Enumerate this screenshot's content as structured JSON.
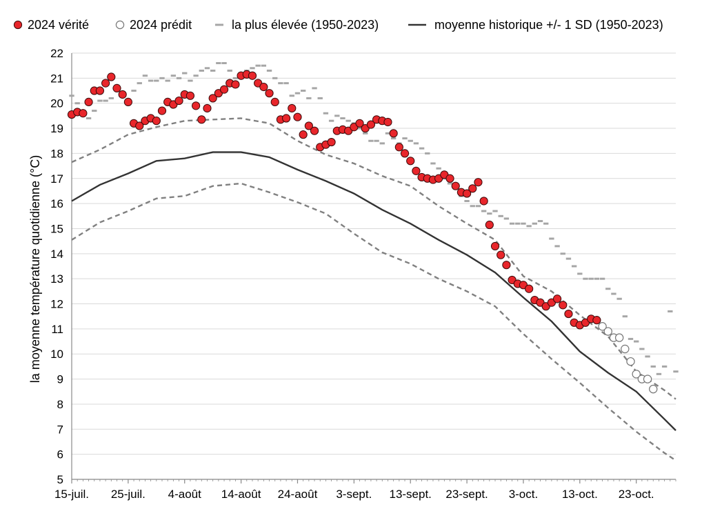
{
  "chart_data": {
    "type": "line",
    "xlabel": "",
    "ylabel": "la moyenne température quotidienne (°C)",
    "ylim": [
      5,
      22
    ],
    "yticks": [
      5,
      6,
      7,
      8,
      9,
      10,
      11,
      12,
      13,
      14,
      15,
      16,
      17,
      18,
      19,
      20,
      21,
      22
    ],
    "x_start_date": "15-juil.",
    "xlim": [
      0,
      107
    ],
    "xticks": [
      {
        "day": 0,
        "label": "15-juil."
      },
      {
        "day": 10,
        "label": "25-juil."
      },
      {
        "day": 20,
        "label": "4-août"
      },
      {
        "day": 30,
        "label": "14-août"
      },
      {
        "day": 40,
        "label": "24-août"
      },
      {
        "day": 50,
        "label": "3-sept."
      },
      {
        "day": 60,
        "label": "13-sept."
      },
      {
        "day": 70,
        "label": "23-sept."
      },
      {
        "day": 80,
        "label": "3-oct."
      },
      {
        "day": 90,
        "label": "13-oct."
      },
      {
        "day": 100,
        "label": "23-oct."
      }
    ],
    "grid": true,
    "legend_position": "top",
    "legend": [
      {
        "key": "observed",
        "label": "2024 vérité"
      },
      {
        "key": "predicted",
        "label": "2024 prédit"
      },
      {
        "key": "highest",
        "label": "la plus élevée (1950-2023)"
      },
      {
        "key": "mean",
        "label": "moyenne historique +/- 1 SD (1950-2023)"
      }
    ],
    "colors": {
      "observed_fill": "#e8262b",
      "observed_stroke": "#3a0a0a",
      "predicted_stroke": "#777777",
      "highest": "#a6a6a6",
      "sd": "#808080",
      "mean": "#333333",
      "grid": "#d9d9d9",
      "axis": "#888888"
    },
    "series": [
      {
        "name": "2024 vérité",
        "key": "observed",
        "x": [
          0,
          1,
          2,
          3,
          4,
          5,
          6,
          7,
          8,
          9,
          10,
          11,
          12,
          13,
          14,
          15,
          16,
          17,
          18,
          19,
          20,
          21,
          22,
          23,
          24,
          25,
          26,
          27,
          28,
          29,
          30,
          31,
          32,
          33,
          34,
          35,
          36,
          37,
          38,
          39,
          40,
          41,
          42,
          43,
          44,
          45,
          46,
          47,
          48,
          49,
          50,
          51,
          52,
          53,
          54,
          55,
          56,
          57,
          58,
          59,
          60,
          61,
          62,
          63,
          64,
          65,
          66,
          67,
          68,
          69,
          70,
          71,
          72,
          73,
          74,
          75,
          76,
          77,
          78,
          79,
          80,
          81,
          82,
          83,
          84,
          85,
          86,
          87,
          88,
          89,
          90,
          91,
          92,
          93
        ],
        "y": [
          19.55,
          19.65,
          19.6,
          20.05,
          20.5,
          20.5,
          20.8,
          21.05,
          20.6,
          20.35,
          20.05,
          19.2,
          19.1,
          19.3,
          19.4,
          19.3,
          19.7,
          20.05,
          19.95,
          20.1,
          20.35,
          20.3,
          19.9,
          19.35,
          19.8,
          20.2,
          20.4,
          20.55,
          20.8,
          20.75,
          21.1,
          21.15,
          21.1,
          20.8,
          20.65,
          20.4,
          20.05,
          19.35,
          19.4,
          19.8,
          19.45,
          18.75,
          19.1,
          18.9,
          18.25,
          18.35,
          18.45,
          18.9,
          18.95,
          18.9,
          19.05,
          19.2,
          19.0,
          19.15,
          19.35,
          19.3,
          19.25,
          18.8,
          18.25,
          18.0,
          17.7,
          17.3,
          17.05,
          17.0,
          16.95,
          17.0,
          17.15,
          17.0,
          16.7,
          16.45,
          16.4,
          16.6,
          16.85,
          16.1,
          15.15,
          14.3,
          13.95,
          13.55,
          12.95,
          12.8,
          12.75,
          12.6,
          12.15,
          12.05,
          11.9,
          12.05,
          12.2,
          11.95,
          11.6,
          11.25,
          11.15,
          11.25,
          11.4,
          11.35
        ]
      },
      {
        "name": "2024 prédit",
        "key": "predicted",
        "x": [
          94,
          95,
          96,
          97,
          98,
          99,
          100,
          101,
          102,
          103
        ],
        "y": [
          11.1,
          10.9,
          10.65,
          10.65,
          10.2,
          9.7,
          9.2,
          9.0,
          9.0,
          8.6
        ]
      },
      {
        "name": "la plus élevée (1950-2023)",
        "key": "highest",
        "x": [
          0,
          1,
          2,
          3,
          4,
          5,
          6,
          7,
          8,
          9,
          10,
          11,
          12,
          13,
          14,
          15,
          16,
          17,
          18,
          19,
          20,
          21,
          22,
          23,
          24,
          25,
          26,
          27,
          28,
          29,
          30,
          31,
          32,
          33,
          34,
          35,
          36,
          37,
          38,
          39,
          40,
          41,
          42,
          43,
          44,
          45,
          46,
          47,
          48,
          49,
          50,
          51,
          52,
          53,
          54,
          55,
          56,
          57,
          58,
          59,
          60,
          61,
          62,
          63,
          64,
          65,
          66,
          67,
          68,
          69,
          70,
          71,
          72,
          73,
          74,
          75,
          76,
          77,
          78,
          79,
          80,
          81,
          82,
          83,
          84,
          85,
          86,
          87,
          88,
          89,
          90,
          91,
          92,
          93,
          94,
          95,
          96,
          97,
          98,
          99,
          100,
          101,
          102,
          103,
          104,
          105,
          106,
          107
        ],
        "y": [
          20.3,
          20.0,
          19.6,
          19.4,
          19.7,
          20.1,
          20.1,
          20.2,
          20.6,
          20.4,
          20.0,
          20.5,
          20.8,
          21.1,
          20.9,
          20.9,
          21.0,
          20.9,
          21.1,
          21.0,
          21.2,
          20.9,
          21.1,
          21.3,
          21.4,
          21.3,
          21.6,
          21.6,
          21.3,
          21.0,
          21.2,
          21.3,
          21.4,
          21.5,
          21.5,
          21.3,
          21.0,
          20.8,
          20.8,
          20.3,
          20.4,
          20.5,
          20.2,
          20.6,
          20.2,
          19.6,
          19.3,
          19.5,
          19.4,
          19.3,
          19.2,
          19.0,
          18.8,
          18.5,
          18.5,
          18.4,
          18.8,
          18.6,
          18.4,
          18.6,
          18.5,
          18.4,
          18.2,
          18.0,
          17.6,
          17.4,
          17.0,
          16.8,
          16.6,
          16.3,
          16.1,
          15.9,
          15.9,
          15.7,
          15.6,
          15.7,
          15.5,
          15.4,
          15.2,
          15.2,
          15.2,
          15.1,
          15.2,
          15.3,
          15.2,
          14.6,
          14.3,
          14.0,
          13.8,
          13.5,
          13.2,
          13.0,
          13.0,
          13.0,
          13.0,
          12.6,
          12.4,
          12.2,
          11.5,
          10.6,
          10.5,
          10.2,
          9.9,
          9.5,
          9.2,
          9.5,
          11.7,
          9.3
        ]
      },
      {
        "name": "+1 SD",
        "key": "sd_high",
        "x": [
          0,
          5,
          10,
          15,
          20,
          25,
          30,
          35,
          40,
          45,
          50,
          55,
          60,
          65,
          70,
          75,
          80,
          85,
          90,
          95,
          100,
          105,
          107
        ],
        "y": [
          17.65,
          18.15,
          18.75,
          19.05,
          19.3,
          19.35,
          19.4,
          19.2,
          18.5,
          17.95,
          17.6,
          17.1,
          16.7,
          15.9,
          15.2,
          14.55,
          13.1,
          12.5,
          11.55,
          10.7,
          9.3,
          8.55,
          8.2
        ]
      },
      {
        "name": "moyenne historique +/- 1 SD (1950-2023)",
        "key": "mean",
        "x": [
          0,
          5,
          10,
          15,
          20,
          25,
          30,
          35,
          40,
          45,
          50,
          55,
          60,
          65,
          70,
          75,
          80,
          85,
          90,
          95,
          100,
          105,
          107
        ],
        "y": [
          16.1,
          16.75,
          17.2,
          17.7,
          17.8,
          18.05,
          18.05,
          17.85,
          17.35,
          16.9,
          16.4,
          15.75,
          15.2,
          14.55,
          13.95,
          13.25,
          12.25,
          11.3,
          10.1,
          9.25,
          8.5,
          7.4,
          6.95
        ]
      },
      {
        "name": "-1 SD",
        "key": "sd_low",
        "x": [
          0,
          5,
          10,
          15,
          20,
          25,
          30,
          35,
          40,
          45,
          50,
          55,
          60,
          65,
          70,
          75,
          80,
          85,
          90,
          95,
          100,
          105,
          107
        ],
        "y": [
          14.55,
          15.25,
          15.7,
          16.2,
          16.3,
          16.7,
          16.8,
          16.45,
          16.05,
          15.6,
          14.8,
          14.05,
          13.6,
          13.0,
          12.5,
          11.9,
          10.8,
          9.8,
          8.85,
          7.85,
          6.9,
          6.05,
          5.75
        ]
      }
    ]
  }
}
